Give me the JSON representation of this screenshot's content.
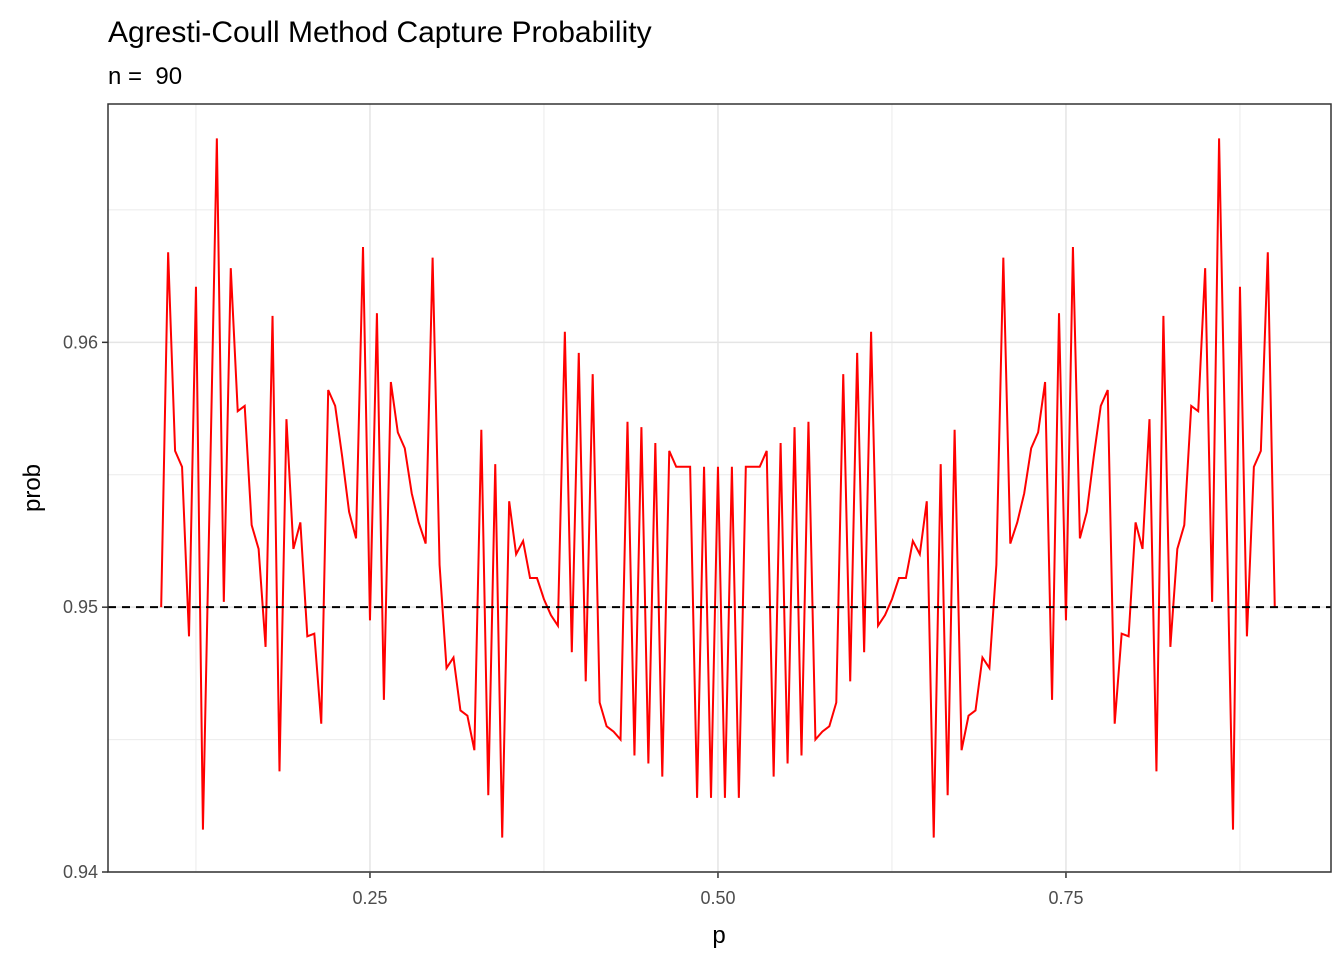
{
  "chart_data": {
    "type": "line",
    "title": "Agresti-Coull Method Capture Probability",
    "subtitle": "n =  90",
    "x_label": "p",
    "y_label": "prob",
    "color": "#ff0000",
    "x": [
      0.1,
      0.105,
      0.11,
      0.115,
      0.12,
      0.125,
      0.13,
      0.135,
      0.14,
      0.145,
      0.15,
      0.155,
      0.16,
      0.165,
      0.17,
      0.175,
      0.18,
      0.185,
      0.19,
      0.195,
      0.2,
      0.205,
      0.21,
      0.215,
      0.22,
      0.225,
      0.23,
      0.235,
      0.24,
      0.245,
      0.25,
      0.255,
      0.26,
      0.265,
      0.27,
      0.275,
      0.28,
      0.285,
      0.29,
      0.295,
      0.3,
      0.305,
      0.31,
      0.315,
      0.32,
      0.325,
      0.33,
      0.335,
      0.34,
      0.345,
      0.35,
      0.355,
      0.36,
      0.365,
      0.37,
      0.375,
      0.38,
      0.385,
      0.39,
      0.395,
      0.4,
      0.405,
      0.41,
      0.415,
      0.42,
      0.425,
      0.43,
      0.435,
      0.44,
      0.445,
      0.45,
      0.455,
      0.46,
      0.465,
      0.47,
      0.475,
      0.48,
      0.485,
      0.49,
      0.495,
      0.5,
      0.505,
      0.51,
      0.515,
      0.52,
      0.525,
      0.53,
      0.535,
      0.54,
      0.545,
      0.55,
      0.555,
      0.56,
      0.565,
      0.57,
      0.575,
      0.58,
      0.585,
      0.59,
      0.595,
      0.6,
      0.605,
      0.61,
      0.615,
      0.62,
      0.625,
      0.63,
      0.635,
      0.64,
      0.645,
      0.65,
      0.655,
      0.66,
      0.665,
      0.67,
      0.675,
      0.68,
      0.685,
      0.69,
      0.695,
      0.7,
      0.705,
      0.71,
      0.715,
      0.72,
      0.725,
      0.73,
      0.735,
      0.74,
      0.745,
      0.75,
      0.755,
      0.76,
      0.765,
      0.77,
      0.775,
      0.78,
      0.785,
      0.79,
      0.795,
      0.8,
      0.805,
      0.81,
      0.815,
      0.82,
      0.825,
      0.83,
      0.835,
      0.84,
      0.845,
      0.85,
      0.855,
      0.86,
      0.865,
      0.87,
      0.875,
      0.88,
      0.885,
      0.89,
      0.895,
      0.9
    ],
    "values": [
      0.95,
      0.9634,
      0.9559,
      0.9553,
      0.9489,
      0.9621,
      0.9416,
      0.9545,
      0.9677,
      0.9502,
      0.9628,
      0.9574,
      0.9576,
      0.9531,
      0.9522,
      0.9485,
      0.961,
      0.9438,
      0.9571,
      0.9522,
      0.9532,
      0.9489,
      0.949,
      0.9456,
      0.9582,
      0.9576,
      0.9557,
      0.9536,
      0.9526,
      0.9636,
      0.9495,
      0.9611,
      0.9465,
      0.9585,
      0.9566,
      0.956,
      0.9543,
      0.9532,
      0.9524,
      0.9632,
      0.9516,
      0.9477,
      0.9481,
      0.9461,
      0.9459,
      0.9446,
      0.9567,
      0.9429,
      0.9554,
      0.9413,
      0.954,
      0.952,
      0.9525,
      0.9511,
      0.9511,
      0.9503,
      0.9497,
      0.9493,
      0.9604,
      0.9483,
      0.9596,
      0.9472,
      0.9588,
      0.9464,
      0.9455,
      0.9453,
      0.945,
      0.957,
      0.9444,
      0.9568,
      0.9441,
      0.9562,
      0.9436,
      0.9559,
      0.9553,
      0.9553,
      0.9553,
      0.9428,
      0.9553,
      0.9428,
      0.9553,
      0.9428,
      0.9553,
      0.9428,
      0.9553,
      0.9553,
      0.9553,
      0.9559,
      0.9436,
      0.9562,
      0.9441,
      0.9568,
      0.9444,
      0.957,
      0.945,
      0.9453,
      0.9455,
      0.9464,
      0.9588,
      0.9472,
      0.9596,
      0.9483,
      0.9604,
      0.9493,
      0.9497,
      0.9503,
      0.9511,
      0.9511,
      0.9525,
      0.952,
      0.954,
      0.9413,
      0.9554,
      0.9429,
      0.9567,
      0.9446,
      0.9459,
      0.9461,
      0.9481,
      0.9477,
      0.9516,
      0.9632,
      0.9524,
      0.9532,
      0.9543,
      0.956,
      0.9566,
      0.9585,
      0.9465,
      0.9611,
      0.9495,
      0.9636,
      0.9526,
      0.9536,
      0.9557,
      0.9576,
      0.9582,
      0.9456,
      0.949,
      0.9489,
      0.9532,
      0.9522,
      0.9571,
      0.9438,
      0.961,
      0.9485,
      0.9522,
      0.9531,
      0.9576,
      0.9574,
      0.9628,
      0.9502,
      0.9677,
      0.9545,
      0.9416,
      0.9621,
      0.9489,
      0.9553,
      0.9559,
      0.9634,
      0.95
    ],
    "hline": 0.95,
    "xlim": [
      0.0618,
      0.9404
    ],
    "ylim": [
      0.94,
      0.969
    ],
    "xticks": [
      0.25,
      {
        "value": 0.5,
        "label": "0.50"
      },
      0.75
    ],
    "yticks": [
      0.94,
      0.95,
      0.96
    ],
    "xminor": [
      0.125,
      0.375,
      0.625,
      0.875
    ],
    "yminor": [
      0.945,
      0.955,
      0.965
    ],
    "grid": true
  }
}
